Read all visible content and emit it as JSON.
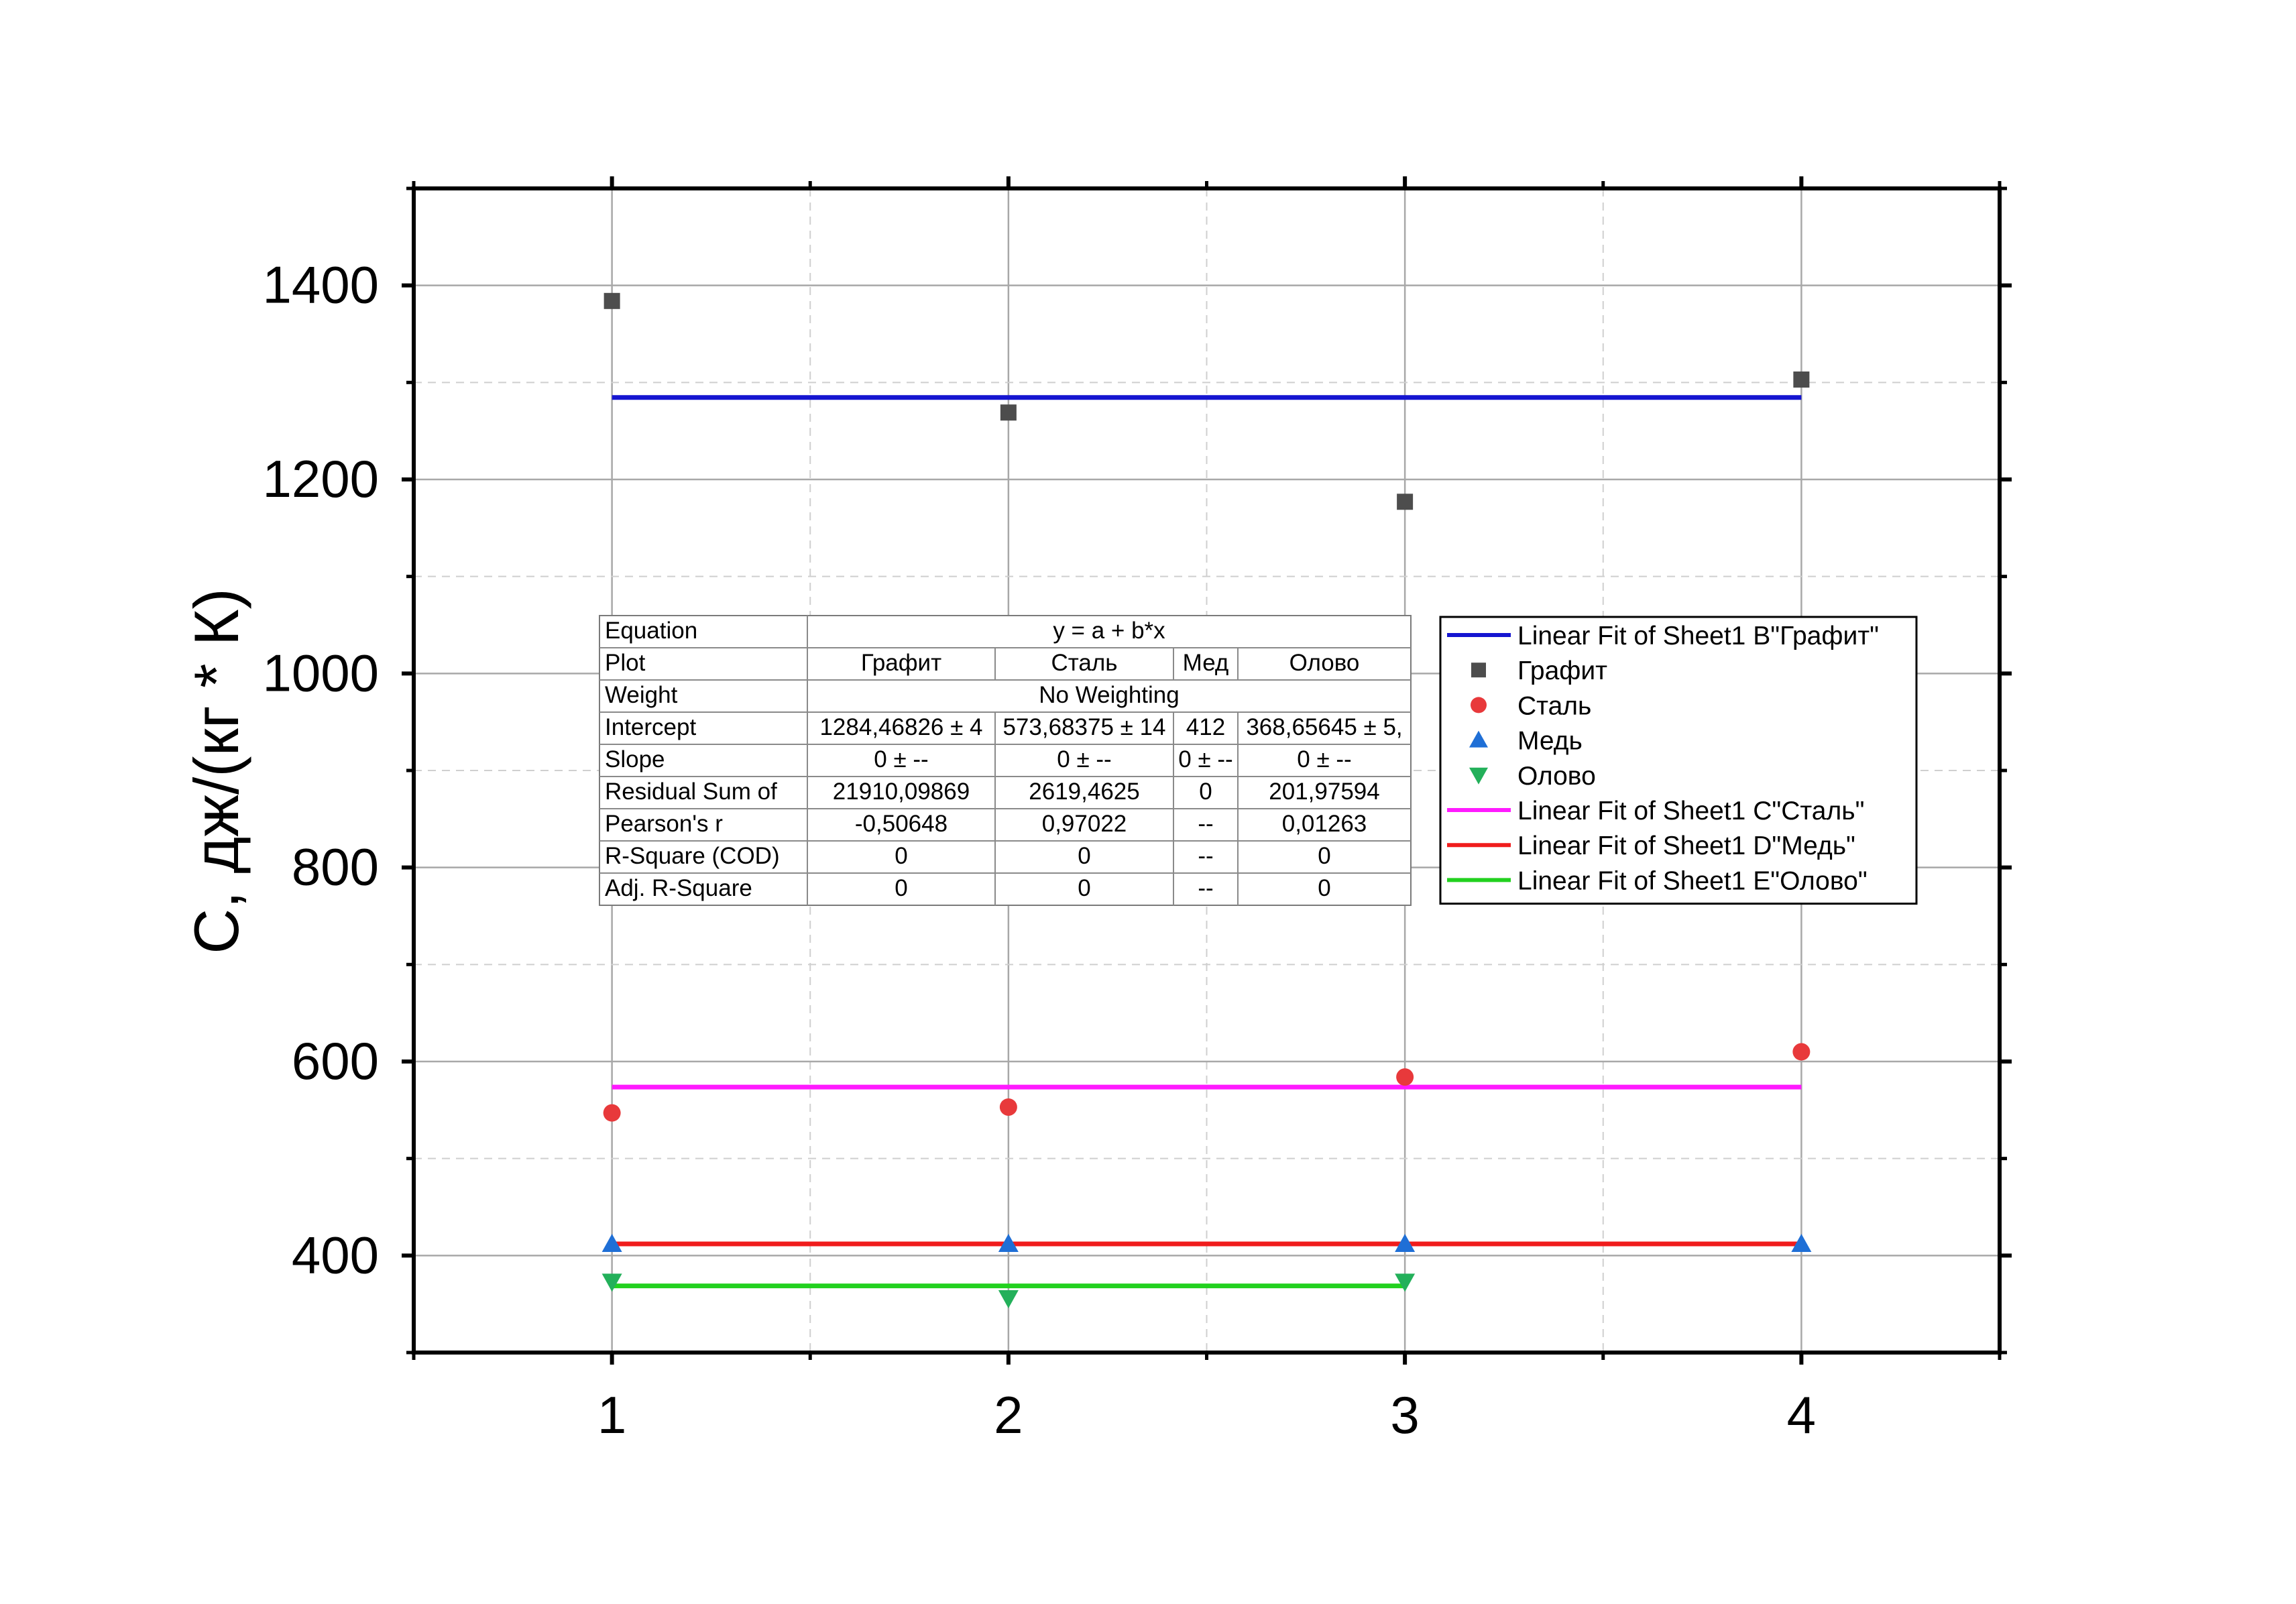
{
  "chart_data": {
    "type": "scatter",
    "title": "",
    "xlabel": "",
    "ylabel": "C, дж/(кг * К)",
    "xlim": [
      0.5,
      4.5
    ],
    "ylim": [
      300,
      1500
    ],
    "x_ticks": [
      "1",
      "2",
      "3",
      "4"
    ],
    "y_ticks": [
      "400",
      "600",
      "800",
      "1000",
      "1200",
      "1400"
    ],
    "grid": true,
    "series": [
      {
        "name": "Графит",
        "marker": "square",
        "color": "#4d4d4d",
        "x": [
          1,
          2,
          3,
          4
        ],
        "y": [
          1384,
          1269,
          1177,
          1303
        ]
      },
      {
        "name": "Сталь",
        "marker": "circle",
        "color": "#e8393b",
        "x": [
          1,
          2,
          3,
          4
        ],
        "y": [
          547,
          553,
          584,
          610
        ]
      },
      {
        "name": "Медь",
        "marker": "triangle-up",
        "color": "#1f6fd6",
        "x": [
          1,
          2,
          3,
          4
        ],
        "y": [
          412,
          412,
          412,
          412
        ]
      },
      {
        "name": "Олово",
        "marker": "triangle-down",
        "color": "#23b05a",
        "x": [
          1,
          2,
          3
        ],
        "y": [
          373,
          356,
          373
        ]
      }
    ],
    "fits": [
      {
        "name": "Linear Fit of Sheet1 B\"Графит\"",
        "color": "#1515d0",
        "x": [
          1,
          4
        ],
        "y": [
          1284.47,
          1284.47
        ]
      },
      {
        "name": "Linear Fit of Sheet1 C\"Сталь\"",
        "color": "#ff1aff",
        "x": [
          1,
          4
        ],
        "y": [
          573.68,
          573.68
        ]
      },
      {
        "name": "Linear Fit of Sheet1 D\"Медь\"",
        "color": "#f01c1c",
        "x": [
          1,
          4
        ],
        "y": [
          412,
          412
        ]
      },
      {
        "name": "Linear Fit of Sheet1 E\"Олово\"",
        "color": "#22d11f",
        "x": [
          1,
          3
        ],
        "y": [
          368.66,
          368.66
        ]
      }
    ],
    "legend": {
      "placement": "center-right",
      "entries": [
        {
          "label": "Linear Fit of Sheet1 B\"Графит\"",
          "kind": "line",
          "color": "#1515d0"
        },
        {
          "label": "Графит",
          "kind": "square",
          "color": "#4d4d4d"
        },
        {
          "label": "Сталь",
          "kind": "circle",
          "color": "#e8393b"
        },
        {
          "label": "Медь",
          "kind": "triangle-up",
          "color": "#1f6fd6"
        },
        {
          "label": "Олово",
          "kind": "triangle-down",
          "color": "#23b05a"
        },
        {
          "label": "Linear Fit of Sheet1 C\"Сталь\"",
          "kind": "line",
          "color": "#ff1aff"
        },
        {
          "label": "Linear Fit of Sheet1 D\"Медь\"",
          "kind": "line",
          "color": "#f01c1c"
        },
        {
          "label": "Linear Fit of Sheet1 E\"Олово\"",
          "kind": "line",
          "color": "#22d11f"
        }
      ]
    },
    "fit_table": {
      "equation_label": "Equation",
      "equation": "y = a + b*x",
      "plot_label": "Plot",
      "plots": [
        "Графит",
        "Сталь",
        "Мед",
        "Олово"
      ],
      "weight_label": "Weight",
      "weight": "No Weighting",
      "rows": [
        {
          "label": "Intercept",
          "values": [
            "1284,46826 ± 4",
            "573,68375 ± 14",
            "412",
            "368,65645 ± 5,"
          ]
        },
        {
          "label": "Slope",
          "values": [
            "0 ± --",
            "0 ± --",
            "0 ± --",
            "0 ± --"
          ]
        },
        {
          "label": "Residual Sum of",
          "values": [
            "21910,09869",
            "2619,4625",
            "0",
            "201,97594"
          ]
        },
        {
          "label": "Pearson's r",
          "values": [
            "-0,50648",
            "0,97022",
            "--",
            "0,01263"
          ]
        },
        {
          "label": "R-Square (COD)",
          "values": [
            "0",
            "0",
            "--",
            "0"
          ]
        },
        {
          "label": "Adj. R-Square",
          "values": [
            "0",
            "0",
            "--",
            "0"
          ]
        }
      ]
    }
  }
}
